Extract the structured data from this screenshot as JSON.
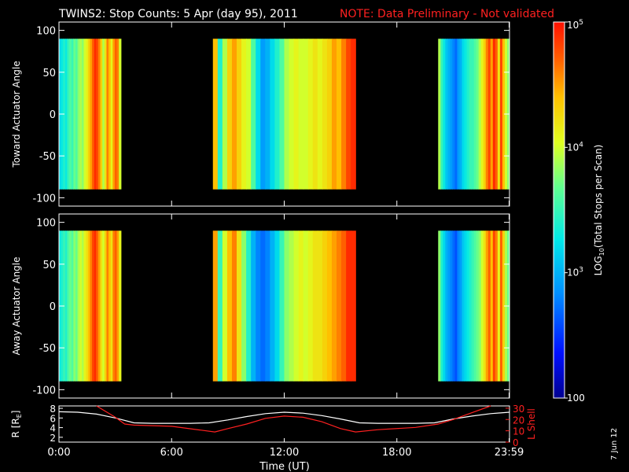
{
  "header": {
    "title": "TWINS2: Stop Counts:  5 Apr (day  95), 2011",
    "note": "NOTE: Data Preliminary - Not validated"
  },
  "footer": {
    "date_stamp": "7 Jun 12"
  },
  "colorbar": {
    "label": "LOG10(Total Stops per Scan)",
    "label_prefix": "LOG",
    "label_sub": "10",
    "label_suffix": "(Total Stops per Scan)",
    "ticks": [
      {
        "base": "10",
        "exp": "5",
        "value": 100000
      },
      {
        "base": "10",
        "exp": "4",
        "value": 10000
      },
      {
        "base": "10",
        "exp": "3",
        "value": 1000
      },
      {
        "base": "100",
        "exp": "",
        "value": 100
      }
    ],
    "range": [
      100,
      100000
    ],
    "scale": "log"
  },
  "chart_data": [
    {
      "type": "heatmap",
      "ylabel": "Toward Actuator Angle",
      "xlim": [
        0,
        24
      ],
      "ylim": [
        -110,
        110
      ],
      "yticks": [
        "100",
        "50",
        "0",
        "-50",
        "-100"
      ],
      "ytick_values": [
        100,
        50,
        0,
        -50,
        -100
      ],
      "data_angle_range": [
        -90,
        90
      ],
      "segments": [
        {
          "start_hour": 0.0,
          "end_hour": 3.3,
          "log_counts": [
            3.2,
            3.3,
            3.4,
            3.3,
            3.5,
            3.6,
            3.5,
            3.7,
            3.6,
            3.8,
            3.9,
            3.8,
            4.0,
            4.1,
            4.3,
            4.5,
            4.7,
            4.9,
            4.8,
            4.6,
            4.3,
            3.9,
            4.2,
            4.6,
            4.4,
            4.1,
            4.5,
            4.7,
            4.6,
            4.0
          ]
        },
        {
          "start_hour": 8.2,
          "end_hour": 15.8,
          "log_counts": [
            4.4,
            3.4,
            3.9,
            4.3,
            4.5,
            4.3,
            4.1,
            4.0,
            3.6,
            3.2,
            2.9,
            3.0,
            3.2,
            3.4,
            3.6,
            3.9,
            4.0,
            4.1,
            4.0,
            4.0,
            4.1,
            4.2,
            4.1,
            4.2,
            4.3,
            4.5,
            4.4,
            4.6,
            4.8,
            4.9
          ]
        },
        {
          "start_hour": 20.2,
          "end_hour": 24.0,
          "log_counts": [
            3.9,
            3.5,
            3.3,
            3.1,
            3.0,
            2.9,
            2.8,
            2.7,
            2.9,
            3.0,
            3.2,
            3.3,
            3.4,
            3.5,
            3.5,
            3.6,
            3.7,
            3.9,
            4.1,
            4.3,
            4.6,
            4.8,
            4.5,
            4.9,
            4.7,
            4.2,
            4.8,
            4.4,
            4.0,
            3.8
          ]
        }
      ]
    },
    {
      "type": "heatmap",
      "ylabel": "Away Actuator Angle",
      "xlim": [
        0,
        24
      ],
      "ylim": [
        -110,
        110
      ],
      "yticks": [
        "100",
        "50",
        "0",
        "-50",
        "-100"
      ],
      "ytick_values": [
        100,
        50,
        0,
        -50,
        -100
      ],
      "data_angle_range": [
        -90,
        90
      ],
      "segments": [
        {
          "start_hour": 0.0,
          "end_hour": 3.3,
          "log_counts": [
            3.3,
            3.4,
            3.5,
            3.4,
            3.6,
            3.7,
            3.6,
            3.8,
            3.7,
            3.9,
            4.0,
            3.9,
            4.1,
            4.2,
            4.4,
            4.6,
            4.8,
            4.9,
            4.7,
            4.5,
            4.2,
            4.0,
            4.3,
            4.6,
            4.4,
            4.2,
            4.6,
            4.7,
            4.5,
            4.1
          ]
        },
        {
          "start_hour": 8.2,
          "end_hour": 15.8,
          "log_counts": [
            4.5,
            3.5,
            4.0,
            4.4,
            4.6,
            4.2,
            3.8,
            3.4,
            3.0,
            2.8,
            2.7,
            2.8,
            3.0,
            3.2,
            3.5,
            3.8,
            3.9,
            4.0,
            4.1,
            4.0,
            4.1,
            4.2,
            4.2,
            4.3,
            4.4,
            4.5,
            4.6,
            4.7,
            4.9,
            4.9
          ]
        },
        {
          "start_hour": 20.2,
          "end_hour": 24.0,
          "log_counts": [
            3.8,
            3.4,
            3.2,
            3.0,
            2.9,
            2.8,
            2.7,
            2.6,
            2.8,
            2.9,
            3.1,
            3.2,
            3.3,
            3.4,
            3.5,
            3.6,
            3.7,
            3.8,
            4.0,
            4.2,
            4.5,
            4.7,
            4.4,
            4.8,
            4.6,
            4.1,
            4.7,
            4.3,
            3.9,
            3.7
          ]
        }
      ]
    },
    {
      "type": "line",
      "ylabel_left": "R [RE]",
      "ylabel_left_prefix": "R [R",
      "ylabel_left_sub": "E",
      "ylabel_left_suffix": "]",
      "ylabel_right": "L Shell",
      "xlabel": "Time (UT)",
      "xticks": [
        "0:00",
        "6:00",
        "12:00",
        "18:00",
        "23:59"
      ],
      "xtick_values": [
        0,
        6,
        12,
        18,
        23.98
      ],
      "xlim": [
        0,
        24
      ],
      "ylim_left": [
        1,
        8.5
      ],
      "yticks_left": [
        "8",
        "6",
        "4",
        "2"
      ],
      "ytick_left_values": [
        8,
        6,
        4,
        2
      ],
      "ylim_right": [
        0,
        32
      ],
      "yticks_right": [
        "30",
        "20",
        "10",
        "0"
      ],
      "ytick_right_values": [
        30,
        20,
        10,
        0
      ],
      "series": [
        {
          "name": "R [RE]",
          "color": "#ffffff",
          "axis": "left",
          "x": [
            0,
            1,
            2,
            3,
            4,
            5,
            6,
            7,
            8,
            9,
            10,
            11,
            12,
            13,
            14,
            15,
            16,
            17,
            18,
            19,
            20,
            21,
            22,
            23,
            24
          ],
          "y": [
            7.3,
            7.2,
            6.8,
            6.0,
            5.0,
            4.9,
            4.9,
            4.9,
            5.0,
            5.6,
            6.3,
            6.9,
            7.2,
            7.0,
            6.5,
            5.8,
            5.0,
            4.9,
            4.9,
            4.9,
            5.0,
            5.8,
            6.4,
            6.9,
            7.2
          ]
        },
        {
          "name": "L Shell",
          "color": "#ff2020",
          "axis": "right",
          "x": [
            2.0,
            3.0,
            3.5,
            4,
            6,
            8.3,
            9,
            10,
            11,
            12,
            13,
            14,
            15,
            15.8,
            17,
            19,
            20.2,
            21,
            22,
            23
          ],
          "y": [
            32,
            22,
            16,
            15,
            14,
            9,
            12,
            16,
            21,
            23,
            22,
            18,
            12,
            9,
            11,
            13,
            16,
            20,
            26,
            32
          ]
        }
      ]
    }
  ]
}
